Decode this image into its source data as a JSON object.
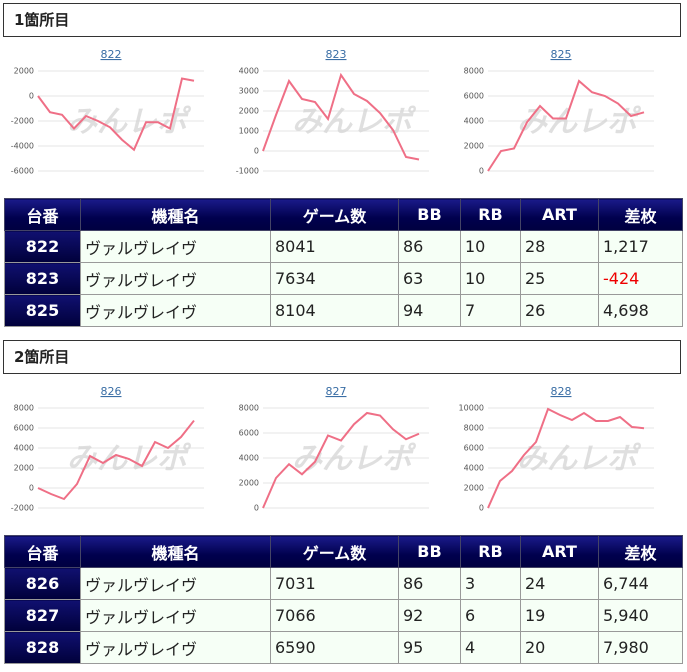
{
  "sections": [
    {
      "title": "1箇所目",
      "table": {
        "header": [
          "台番",
          "機種名",
          "ゲーム数",
          "BB",
          "RB",
          "ART",
          "差枚"
        ],
        "rows": [
          [
            "822",
            "ヴァルヴレイヴ",
            "8041",
            "86",
            "10",
            "28",
            "1,217"
          ],
          [
            "823",
            "ヴァルヴレイヴ",
            "7634",
            "63",
            "10",
            "25",
            "-424"
          ],
          [
            "825",
            "ヴァルヴレイヴ",
            "8104",
            "94",
            "7",
            "26",
            "4,698"
          ]
        ]
      }
    },
    {
      "title": "2箇所目",
      "table": {
        "header": [
          "台番",
          "機種名",
          "ゲーム数",
          "BB",
          "RB",
          "ART",
          "差枚"
        ],
        "rows": [
          [
            "826",
            "ヴァルヴレイヴ",
            "7031",
            "86",
            "3",
            "24",
            "6,744"
          ],
          [
            "827",
            "ヴァルヴレイヴ",
            "7066",
            "92",
            "6",
            "19",
            "5,940"
          ],
          [
            "828",
            "ヴァルヴレイヴ",
            "6590",
            "95",
            "4",
            "20",
            "7,980"
          ]
        ]
      }
    }
  ],
  "watermark": "みんレポ",
  "chart_data": [
    {
      "type": "line",
      "title": "822",
      "color": "#ef6f86",
      "grid": true,
      "ylim": [
        -6000,
        2000
      ],
      "yticks": [
        2000,
        0,
        -2000,
        -4000,
        -6000
      ],
      "values": [
        0,
        -1300,
        -1500,
        -2600,
        -1600,
        -2000,
        -2500,
        -3500,
        -4300,
        -2100,
        -2100,
        -2600,
        1400,
        1217
      ]
    },
    {
      "type": "line",
      "title": "823",
      "color": "#ef6f86",
      "grid": true,
      "ylim": [
        -1000,
        4000
      ],
      "yticks": [
        4000,
        3000,
        2000,
        1000,
        0,
        -1000
      ],
      "values": [
        0,
        1800,
        3500,
        2600,
        2450,
        1600,
        3800,
        2850,
        2500,
        1900,
        1050,
        -300,
        -424
      ]
    },
    {
      "type": "line",
      "title": "825",
      "color": "#ef6f86",
      "grid": true,
      "ylim": [
        0,
        8000
      ],
      "yticks": [
        8000,
        6000,
        4000,
        2000,
        0
      ],
      "values": [
        0,
        1600,
        1800,
        3900,
        5200,
        4200,
        4200,
        7200,
        6300,
        6000,
        5400,
        4400,
        4698
      ]
    },
    {
      "type": "line",
      "title": "826",
      "color": "#ef6f86",
      "grid": true,
      "ylim": [
        -2000,
        8000
      ],
      "yticks": [
        8000,
        6000,
        4000,
        2000,
        0,
        -2000
      ],
      "values": [
        0,
        -600,
        -1100,
        400,
        3200,
        2500,
        3300,
        2900,
        2200,
        4600,
        4000,
        5100,
        6744
      ]
    },
    {
      "type": "line",
      "title": "827",
      "color": "#ef6f86",
      "grid": true,
      "ylim": [
        0,
        8000
      ],
      "yticks": [
        8000,
        6000,
        4000,
        2000,
        0
      ],
      "values": [
        0,
        2400,
        3500,
        2700,
        3700,
        5800,
        5400,
        6700,
        7600,
        7400,
        6300,
        5500,
        5940
      ]
    },
    {
      "type": "line",
      "title": "828",
      "color": "#ef6f86",
      "grid": true,
      "ylim": [
        0,
        10000
      ],
      "yticks": [
        10000,
        8000,
        6000,
        4000,
        2000,
        0
      ],
      "values": [
        0,
        2700,
        3700,
        5300,
        6600,
        9900,
        9300,
        8800,
        9500,
        8700,
        8700,
        9100,
        8100,
        7980
      ]
    }
  ]
}
